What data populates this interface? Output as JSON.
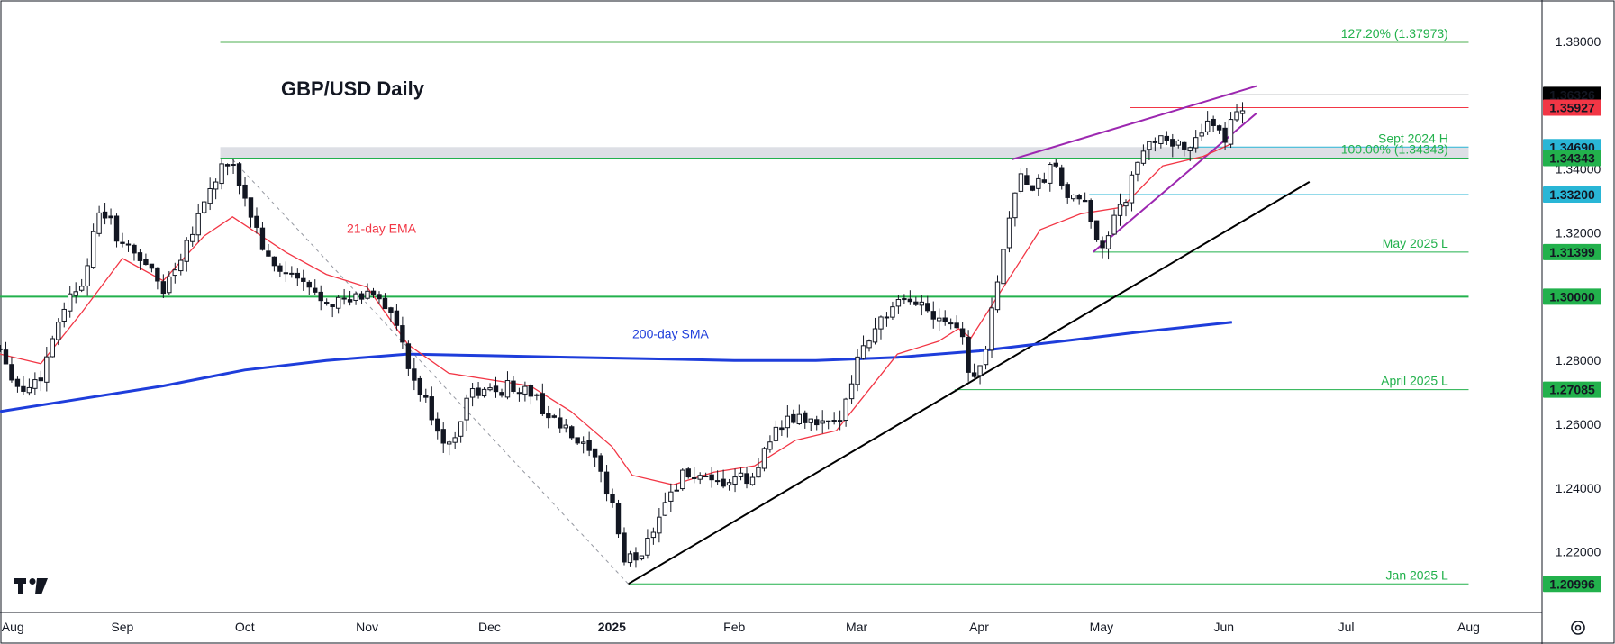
{
  "chart_data": {
    "type": "candlestick",
    "title": "GBP/USD Daily",
    "price_axis": {
      "ticks": [
        "1.38000",
        "1.36000",
        "1.34000",
        "1.32000",
        "1.30000",
        "1.28000",
        "1.26000",
        "1.24000",
        "1.22000"
      ],
      "range": [
        1.201,
        1.393
      ]
    },
    "time_axis": {
      "ticks": [
        "Aug",
        "Sep",
        "Oct",
        "Nov",
        "Dec",
        "2025",
        "Feb",
        "Mar",
        "Apr",
        "May",
        "Jun",
        "Jul",
        "Aug"
      ],
      "tick_t": [
        0.4,
        30,
        60,
        90,
        120,
        150,
        180,
        210,
        240,
        270,
        300,
        330,
        360
      ],
      "range": [
        0,
        378
      ]
    },
    "price_labels": [
      {
        "text": "1.36326",
        "y": 1.36326,
        "bg": "#000000",
        "fg": "#ffffff"
      },
      {
        "text": "1.35927",
        "y": 1.35927,
        "bg": "#f23645",
        "fg": "#ffffff"
      },
      {
        "text": "1.34690",
        "y": 1.3469,
        "bg": "#29b6d6",
        "fg": "#131722"
      },
      {
        "text": "1.34343",
        "y": 1.34343,
        "bg": "#22b14c",
        "fg": "#131722"
      },
      {
        "text": "1.33200",
        "y": 1.332,
        "bg": "#29b6d6",
        "fg": "#131722"
      },
      {
        "text": "1.31399",
        "y": 1.31399,
        "bg": "#22b14c",
        "fg": "#131722"
      },
      {
        "text": "1.30000",
        "y": 1.3,
        "bg": "#22b14c",
        "fg": "#131722"
      },
      {
        "text": "1.27085",
        "y": 1.27085,
        "bg": "#22b14c",
        "fg": "#131722"
      },
      {
        "text": "1.20996",
        "y": 1.20996,
        "bg": "#22b14c",
        "fg": "#131722"
      }
    ],
    "annotations": [
      {
        "text": "127.20% (1.37973)",
        "y": 1.37973,
        "t": 355
      },
      {
        "text": "Sept 2024 H",
        "y": 1.3469,
        "t": 355
      },
      {
        "text": "100.00% (1.34343)",
        "y": 1.34343,
        "t": 355
      },
      {
        "text": "May 2025 L",
        "y": 1.31399,
        "t": 355
      },
      {
        "text": "April 2025 L",
        "y": 1.27085,
        "t": 355
      },
      {
        "text": "Jan 2025 L",
        "y": 1.20996,
        "t": 355
      }
    ],
    "indicator_labels": [
      {
        "text": "21-day EMA",
        "t": 85,
        "y": 1.32,
        "color": "#f23645"
      },
      {
        "text": "200-day SMA",
        "t": 155,
        "y": 1.287,
        "color": "#1e3ddb"
      }
    ],
    "levels": [
      {
        "y": 1.37973,
        "t0": 54,
        "t1": 360,
        "color": "#4caf50",
        "width": 1
      },
      {
        "y": 1.3,
        "t0": 0,
        "t1": 360,
        "color": "#22b14c",
        "width": 2
      },
      {
        "y": 1.34343,
        "t0": 54,
        "t1": 360,
        "color": "#22b14c",
        "width": 1
      },
      {
        "y": 1.3469,
        "t0": 292,
        "t1": 360,
        "color": "#29b6d6",
        "width": 1
      },
      {
        "y": 1.332,
        "t0": 267,
        "t1": 360,
        "color": "#29b6d6",
        "width": 1
      },
      {
        "y": 1.31399,
        "t0": 268,
        "t1": 360,
        "color": "#22b14c",
        "width": 1
      },
      {
        "y": 1.27085,
        "t0": 234,
        "t1": 360,
        "color": "#22b14c",
        "width": 1
      },
      {
        "y": 1.20996,
        "t0": 154,
        "t1": 360,
        "color": "#22b14c",
        "width": 1
      },
      {
        "y": 1.36326,
        "t0": 300,
        "t1": 360,
        "color": "#131722",
        "width": 1
      },
      {
        "y": 1.35927,
        "t0": 277,
        "t1": 360,
        "color": "#f23645",
        "width": 1
      }
    ],
    "zone": {
      "y0": 1.34343,
      "y1": 1.3469,
      "t0": 54,
      "t1": 360,
      "color": "#d1d4dc"
    },
    "trendlines": [
      {
        "points": [
          [
            154,
            1.20996
          ],
          [
            321,
            1.336
          ]
        ],
        "color": "#000000",
        "width": 2,
        "dash": ""
      },
      {
        "points": [
          [
            57,
            1.343
          ],
          [
            154,
            1.20996
          ]
        ],
        "color": "#9598a1",
        "width": 1,
        "dash": "4,4"
      },
      {
        "points": [
          [
            248,
            1.343
          ],
          [
            308,
            1.366
          ]
        ],
        "color": "#9c27b0",
        "width": 2,
        "dash": ""
      },
      {
        "points": [
          [
            268,
            1.314
          ],
          [
            308,
            1.3575
          ]
        ],
        "color": "#9c27b0",
        "width": 2,
        "dash": ""
      }
    ],
    "ema21": [
      [
        0,
        1.282
      ],
      [
        10,
        1.279
      ],
      [
        20,
        1.295
      ],
      [
        30,
        1.312
      ],
      [
        40,
        1.305
      ],
      [
        50,
        1.319
      ],
      [
        57,
        1.325
      ],
      [
        70,
        1.314
      ],
      [
        80,
        1.307
      ],
      [
        90,
        1.303
      ],
      [
        100,
        1.285
      ],
      [
        110,
        1.276
      ],
      [
        120,
        1.274
      ],
      [
        130,
        1.272
      ],
      [
        140,
        1.264
      ],
      [
        150,
        1.253
      ],
      [
        155,
        1.244
      ],
      [
        165,
        1.241
      ],
      [
        175,
        1.245
      ],
      [
        185,
        1.247
      ],
      [
        195,
        1.255
      ],
      [
        205,
        1.258
      ],
      [
        210,
        1.266
      ],
      [
        220,
        1.282
      ],
      [
        230,
        1.286
      ],
      [
        235,
        1.29
      ],
      [
        238,
        1.287
      ],
      [
        245,
        1.301
      ],
      [
        255,
        1.321
      ],
      [
        265,
        1.326
      ],
      [
        275,
        1.328
      ],
      [
        285,
        1.341
      ],
      [
        295,
        1.344
      ],
      [
        302,
        1.348
      ]
    ],
    "sma200": [
      [
        0,
        1.264
      ],
      [
        20,
        1.268
      ],
      [
        40,
        1.272
      ],
      [
        60,
        1.277
      ],
      [
        80,
        1.28
      ],
      [
        100,
        1.282
      ],
      [
        120,
        1.2815
      ],
      [
        140,
        1.281
      ],
      [
        160,
        1.2805
      ],
      [
        180,
        1.28
      ],
      [
        200,
        1.28
      ],
      [
        220,
        1.281
      ],
      [
        240,
        1.283
      ],
      [
        260,
        1.286
      ],
      [
        280,
        1.289
      ],
      [
        302,
        1.292
      ]
    ],
    "close_path": [
      [
        0,
        1.284
      ],
      [
        5,
        1.27
      ],
      [
        10,
        1.275
      ],
      [
        15,
        1.296
      ],
      [
        20,
        1.305
      ],
      [
        25,
        1.328
      ],
      [
        30,
        1.316
      ],
      [
        35,
        1.312
      ],
      [
        40,
        1.302
      ],
      [
        45,
        1.315
      ],
      [
        50,
        1.33
      ],
      [
        55,
        1.342
      ],
      [
        58,
        1.338
      ],
      [
        62,
        1.324
      ],
      [
        66,
        1.31
      ],
      [
        72,
        1.306
      ],
      [
        78,
        1.3
      ],
      [
        85,
        1.298
      ],
      [
        92,
        1.302
      ],
      [
        97,
        1.292
      ],
      [
        100,
        1.277
      ],
      [
        105,
        1.265
      ],
      [
        110,
        1.252
      ],
      [
        115,
        1.27
      ],
      [
        120,
        1.27
      ],
      [
        125,
        1.272
      ],
      [
        130,
        1.27
      ],
      [
        135,
        1.262
      ],
      [
        140,
        1.256
      ],
      [
        145,
        1.25
      ],
      [
        150,
        1.236
      ],
      [
        153,
        1.217
      ],
      [
        157,
        1.219
      ],
      [
        163,
        1.236
      ],
      [
        168,
        1.245
      ],
      [
        175,
        1.24
      ],
      [
        180,
        1.243
      ],
      [
        185,
        1.242
      ],
      [
        188,
        1.256
      ],
      [
        195,
        1.262
      ],
      [
        200,
        1.26
      ],
      [
        205,
        1.259
      ],
      [
        210,
        1.28
      ],
      [
        215,
        1.292
      ],
      [
        220,
        1.297
      ],
      [
        225,
        1.299
      ],
      [
        228,
        1.295
      ],
      [
        232,
        1.294
      ],
      [
        236,
        1.289
      ],
      [
        238,
        1.271
      ],
      [
        242,
        1.286
      ],
      [
        245,
        1.31
      ],
      [
        250,
        1.34
      ],
      [
        253,
        1.332
      ],
      [
        258,
        1.341
      ],
      [
        262,
        1.331
      ],
      [
        266,
        1.328
      ],
      [
        270,
        1.316
      ],
      [
        275,
        1.328
      ],
      [
        280,
        1.345
      ],
      [
        285,
        1.352
      ],
      [
        290,
        1.345
      ],
      [
        295,
        1.354
      ],
      [
        300,
        1.349
      ],
      [
        303,
        1.36
      ],
      [
        306,
        1.358
      ]
    ]
  }
}
